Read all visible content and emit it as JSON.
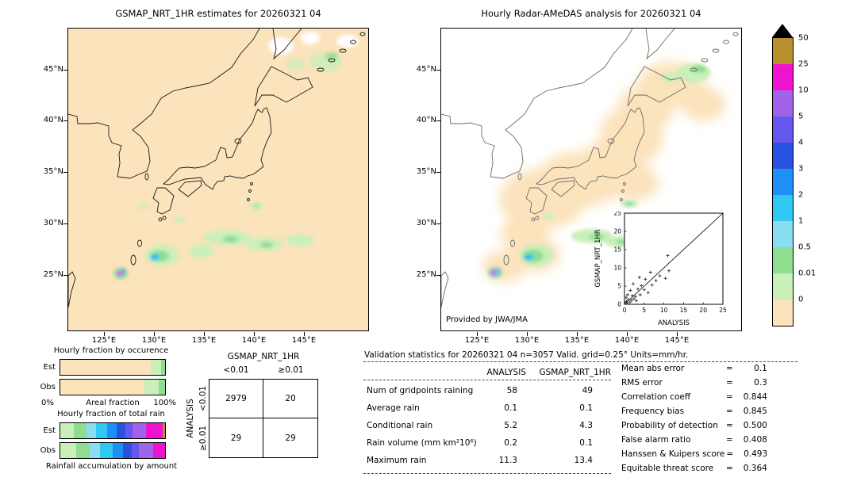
{
  "left_map": {
    "title": "GSMAP_NRT_1HR estimates for 20260321 04",
    "lat_ticks": [
      "45°N",
      "40°N",
      "35°N",
      "30°N",
      "25°N"
    ],
    "lon_ticks": [
      "125°E",
      "130°E",
      "135°E",
      "140°E",
      "145°E"
    ]
  },
  "right_map": {
    "title": "Hourly Radar-AMeDAS analysis for 20260321 04",
    "credit": "Provided by JWA/JMA",
    "lat_ticks": [
      "45°N",
      "40°N",
      "35°N",
      "30°N",
      "25°N"
    ],
    "lon_ticks": [
      "125°E",
      "130°E",
      "135°E",
      "140°E",
      "145°E"
    ],
    "inset": {
      "ylabel": "GSMAP_NRT_1HR",
      "xlabel": "ANALYSIS",
      "ticks": [
        0,
        5,
        10,
        15,
        20,
        25
      ],
      "xlim": [
        0,
        25
      ],
      "ylim": [
        0,
        25
      ],
      "points": [
        [
          0.2,
          0.3
        ],
        [
          0.5,
          0.8
        ],
        [
          0.7,
          0.4
        ],
        [
          1,
          1.3
        ],
        [
          1.4,
          0.6
        ],
        [
          1.8,
          1.1
        ],
        [
          2,
          2.4
        ],
        [
          2.4,
          1.5
        ],
        [
          2.8,
          2.1
        ],
        [
          3,
          1
        ],
        [
          3.4,
          4.2
        ],
        [
          4,
          2.6
        ],
        [
          4.3,
          5.1
        ],
        [
          5,
          4
        ],
        [
          5.3,
          6.9
        ],
        [
          6,
          3.2
        ],
        [
          6.6,
          8.8
        ],
        [
          7,
          5.3
        ],
        [
          8,
          6.5
        ],
        [
          9,
          7.8
        ],
        [
          10.4,
          7.1
        ],
        [
          11.3,
          9.2
        ],
        [
          11,
          13.4
        ],
        [
          1.5,
          3.8
        ],
        [
          0.8,
          2.6
        ],
        [
          2.2,
          5.6
        ],
        [
          3.8,
          7.4
        ],
        [
          0.4,
          1.9
        ]
      ]
    }
  },
  "colorbar": {
    "bands": [
      {
        "value": "50",
        "color": "#b8912e"
      },
      {
        "value": "25",
        "color": "#ef13cf"
      },
      {
        "value": "10",
        "color": "#a163e8"
      },
      {
        "value": "5",
        "color": "#6657ef"
      },
      {
        "value": "4",
        "color": "#2a52e0"
      },
      {
        "value": "3",
        "color": "#1e90f5"
      },
      {
        "value": "2",
        "color": "#30c8f0"
      },
      {
        "value": "1",
        "color": "#8adef2"
      },
      {
        "value": "0.5",
        "color": "#90dd90"
      },
      {
        "value": "0.01",
        "color": "#c9efba"
      },
      {
        "value": "0",
        "color": "#fbe3bb"
      }
    ]
  },
  "occurrence": {
    "title": "Hourly fraction by occurence",
    "axis_left": "0%",
    "axis_label": "Areal fraction",
    "axis_right": "100%",
    "rows": [
      {
        "label": "Est",
        "segments": [
          {
            "color": "#fbe3bb",
            "frac": 0.86
          },
          {
            "color": "#c9efba",
            "frac": 0.1
          },
          {
            "color": "#90dd90",
            "frac": 0.04
          }
        ]
      },
      {
        "label": "Obs",
        "segments": [
          {
            "color": "#fbe3bb",
            "frac": 0.8
          },
          {
            "color": "#c9efba",
            "frac": 0.14
          },
          {
            "color": "#90dd90",
            "frac": 0.06
          }
        ]
      }
    ]
  },
  "total_rain": {
    "title": "Hourly fraction of total rain",
    "caption": "Rainfall accumulation by amount",
    "rows": [
      {
        "label": "Est",
        "segments": [
          {
            "color": "#c9efba",
            "frac": 0.13
          },
          {
            "color": "#90dd90",
            "frac": 0.12
          },
          {
            "color": "#8adef2",
            "frac": 0.09
          },
          {
            "color": "#30c8f0",
            "frac": 0.11
          },
          {
            "color": "#1e90f5",
            "frac": 0.09
          },
          {
            "color": "#2a52e0",
            "frac": 0.08
          },
          {
            "color": "#6657ef",
            "frac": 0.07
          },
          {
            "color": "#a163e8",
            "frac": 0.13
          },
          {
            "color": "#ef13cf",
            "frac": 0.16
          },
          {
            "color": "#b8912e",
            "frac": 0.02
          }
        ]
      },
      {
        "label": "Obs",
        "segments": [
          {
            "color": "#c9efba",
            "frac": 0.15
          },
          {
            "color": "#90dd90",
            "frac": 0.13
          },
          {
            "color": "#8adef2",
            "frac": 0.1
          },
          {
            "color": "#30c8f0",
            "frac": 0.12
          },
          {
            "color": "#1e90f5",
            "frac": 0.1
          },
          {
            "color": "#2a52e0",
            "frac": 0.08
          },
          {
            "color": "#6657ef",
            "frac": 0.07
          },
          {
            "color": "#a163e8",
            "frac": 0.14
          },
          {
            "color": "#ef13cf",
            "frac": 0.11
          }
        ]
      }
    ]
  },
  "contingency": {
    "title": "GSMAP_NRT_1HR",
    "col_headers": [
      "<0.01",
      "≥0.01"
    ],
    "row_axis": "ANALYSIS",
    "row_headers": [
      "<0.01",
      "≥0.01"
    ],
    "values": [
      [
        "2979",
        "20"
      ],
      [
        "29",
        "29"
      ]
    ]
  },
  "stats": {
    "header": "Validation statistics for 20260321 04  n=3057 Valid. grid=0.25° Units=mm/hr.",
    "eq": "=",
    "columns": [
      "ANALYSIS",
      "GSMAP_NRT_1HR"
    ],
    "rows": [
      {
        "label": "Num of gridpoints raining",
        "analysis": "58",
        "gsmap": "49"
      },
      {
        "label": "Average rain",
        "analysis": "0.1",
        "gsmap": "0.1"
      },
      {
        "label": "Conditional rain",
        "analysis": "5.2",
        "gsmap": "4.3"
      },
      {
        "label": "Rain volume (mm km²10⁶)",
        "analysis": "0.2",
        "gsmap": "0.1"
      },
      {
        "label": "Maximum rain",
        "analysis": "11.3",
        "gsmap": "13.4"
      }
    ],
    "metrics": [
      {
        "label": "Mean abs error",
        "value": "0.1"
      },
      {
        "label": "RMS error",
        "value": "0.3"
      },
      {
        "label": "Correlation coeff",
        "value": "0.844"
      },
      {
        "label": "Frequency bias",
        "value": "0.845"
      },
      {
        "label": "Probability of detection",
        "value": "0.500"
      },
      {
        "label": "False alarm ratio",
        "value": "0.408"
      },
      {
        "label": "Hanssen & Kuipers score",
        "value": "0.493"
      },
      {
        "label": "Equitable threat score",
        "value": "0.364"
      }
    ]
  },
  "chart_data": [
    {
      "type": "table",
      "title": "Contingency table (gridpoint counts)",
      "col_axis": "GSMAP_NRT_1HR",
      "row_axis": "ANALYSIS",
      "columns": [
        "<0.01",
        "≥0.01"
      ],
      "rows": [
        "<0.01",
        "≥0.01"
      ],
      "values": [
        [
          2979,
          20
        ],
        [
          29,
          29
        ]
      ]
    },
    {
      "type": "table",
      "title": "Validation statistics for 20260321 04",
      "note": "n=3057 Valid. grid=0.25° Units=mm/hr.",
      "columns": [
        "ANALYSIS",
        "GSMAP_NRT_1HR"
      ],
      "rows": [
        "Num of gridpoints raining",
        "Average rain",
        "Conditional rain",
        "Rain volume (mm km²10⁶)",
        "Maximum rain"
      ],
      "values": [
        [
          58,
          49
        ],
        [
          0.1,
          0.1
        ],
        [
          5.2,
          4.3
        ],
        [
          0.2,
          0.1
        ],
        [
          11.3,
          13.4
        ]
      ]
    },
    {
      "type": "table",
      "title": "Skill metrics",
      "rows": [
        "Mean abs error",
        "RMS error",
        "Correlation coeff",
        "Frequency bias",
        "Probability of detection",
        "False alarm ratio",
        "Hanssen & Kuipers score",
        "Equitable threat score"
      ],
      "values": [
        "0.1",
        "0.3",
        "0.844",
        "0.845",
        "0.500",
        "0.408",
        "0.493",
        "0.364"
      ]
    },
    {
      "type": "bar",
      "stacked": true,
      "title": "Hourly fraction by occurence",
      "categories": [
        "Est",
        "Obs"
      ],
      "xlabel": "Areal fraction",
      "xlim_labels": [
        "0%",
        "100%"
      ],
      "series": [
        {
          "name": "Est",
          "values": [
            0.86,
            0.1,
            0.04
          ]
        },
        {
          "name": "Obs",
          "values": [
            0.8,
            0.14,
            0.06
          ]
        }
      ]
    },
    {
      "type": "bar",
      "stacked": true,
      "title": "Hourly fraction of total rain",
      "categories": [
        "Est",
        "Obs"
      ],
      "caption": "Rainfall accumulation by amount",
      "series": [
        {
          "name": "Est",
          "values": [
            0.13,
            0.12,
            0.09,
            0.11,
            0.09,
            0.08,
            0.07,
            0.13,
            0.16,
            0.02
          ]
        },
        {
          "name": "Obs",
          "values": [
            0.15,
            0.13,
            0.1,
            0.12,
            0.1,
            0.08,
            0.07,
            0.14,
            0.11
          ]
        }
      ]
    },
    {
      "type": "scatter",
      "title": "GSMAP_NRT_1HR vs ANALYSIS (inset)",
      "xlabel": "ANALYSIS",
      "ylabel": "GSMAP_NRT_1HR",
      "xlim": [
        0,
        25
      ],
      "ylim": [
        0,
        25
      ],
      "diagonal": true,
      "points": [
        [
          0.2,
          0.3
        ],
        [
          0.5,
          0.8
        ],
        [
          0.7,
          0.4
        ],
        [
          1,
          1.3
        ],
        [
          1.4,
          0.6
        ],
        [
          1.8,
          1.1
        ],
        [
          2,
          2.4
        ],
        [
          2.4,
          1.5
        ],
        [
          2.8,
          2.1
        ],
        [
          3,
          1
        ],
        [
          3.4,
          4.2
        ],
        [
          4,
          2.6
        ],
        [
          4.3,
          5.1
        ],
        [
          5,
          4
        ],
        [
          5.3,
          6.9
        ],
        [
          6,
          3.2
        ],
        [
          6.6,
          8.8
        ],
        [
          7,
          5.3
        ],
        [
          8,
          6.5
        ],
        [
          9,
          7.8
        ],
        [
          10.4,
          7.1
        ],
        [
          11.3,
          9.2
        ],
        [
          11,
          13.4
        ],
        [
          1.5,
          3.8
        ],
        [
          0.8,
          2.6
        ],
        [
          2.2,
          5.6
        ],
        [
          3.8,
          7.4
        ],
        [
          0.4,
          1.9
        ]
      ]
    }
  ]
}
